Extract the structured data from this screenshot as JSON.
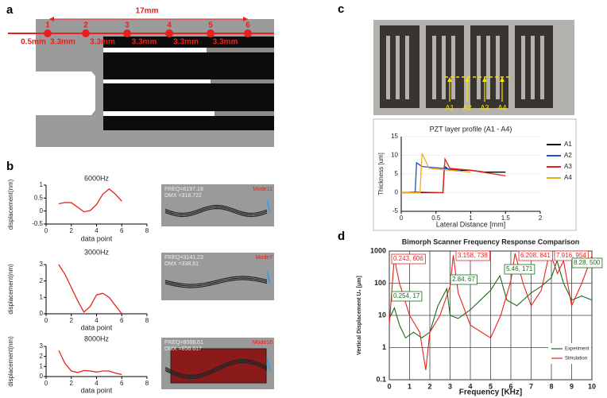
{
  "panel_labels": [
    "a",
    "b",
    "c",
    "d"
  ],
  "diagram": {
    "length": "17mm",
    "points": [
      "1",
      "2",
      "3",
      "4",
      "5",
      "6"
    ],
    "offset": "0.5mm",
    "spacings": [
      "3.3mm",
      "3.3mm",
      "3.3mm",
      "3.3mm",
      "3.3mm"
    ]
  },
  "simulations": [
    {
      "freq": "FREQ=6197.18",
      "dmx": "DMX =318.722",
      "mode": "Mode11"
    },
    {
      "freq": "FREQ=3141.23",
      "dmx": "DMX =338.61",
      "mode": "Mode7"
    },
    {
      "freq": "FREQ=8088.61",
      "dmx": "DMX =858.617",
      "mode": "Mode16"
    }
  ],
  "photo": {
    "markers": [
      "A1",
      "A2",
      "A3",
      "A4"
    ]
  },
  "chart_data": [
    {
      "type": "line",
      "title": "6000Hz",
      "x_label": "data point",
      "y_label": "displacement(nm)",
      "xlim": [
        0,
        8
      ],
      "xticks": [
        0,
        2,
        4,
        6,
        8
      ],
      "ylim": [
        -0.5,
        1
      ],
      "yticks": [
        -0.5,
        0,
        0.5,
        1
      ],
      "series": [
        {
          "color": "#e8211d",
          "x": [
            1,
            1.5,
            2,
            2.5,
            3,
            3.5,
            4,
            4.5,
            5,
            5.5,
            6
          ],
          "values": [
            0.28,
            0.33,
            0.32,
            0.15,
            -0.03,
            0.02,
            0.25,
            0.65,
            0.85,
            0.65,
            0.38
          ]
        }
      ]
    },
    {
      "type": "line",
      "title": "3000Hz",
      "x_label": "data point",
      "y_label": "displacement(nm)",
      "xlim": [
        0,
        8
      ],
      "xticks": [
        0,
        2,
        4,
        6,
        8
      ],
      "ylim": [
        0,
        3
      ],
      "yticks": [
        0,
        1,
        2,
        3
      ],
      "series": [
        {
          "color": "#e8211d",
          "x": [
            1,
            1.5,
            2,
            2.5,
            3,
            3.5,
            4,
            4.5,
            5,
            5.5,
            6
          ],
          "values": [
            3.0,
            2.4,
            1.6,
            0.8,
            0.1,
            0.45,
            1.15,
            1.25,
            1.0,
            0.5,
            0.0
          ]
        }
      ]
    },
    {
      "type": "line",
      "title": "8000Hz",
      "x_label": "data point",
      "y_label": "displacement(nm)",
      "xlim": [
        0,
        8
      ],
      "xticks": [
        0,
        2,
        4,
        6,
        8
      ],
      "ylim": [
        0,
        3
      ],
      "yticks": [
        0,
        1,
        2,
        3
      ],
      "series": [
        {
          "color": "#e8211d",
          "x": [
            1,
            1.5,
            2,
            2.5,
            3,
            3.5,
            4,
            4.5,
            5,
            5.5,
            6
          ],
          "values": [
            2.6,
            1.3,
            0.55,
            0.4,
            0.6,
            0.55,
            0.45,
            0.55,
            0.55,
            0.35,
            0.2
          ]
        }
      ]
    },
    {
      "type": "line",
      "title": "PZT layer profile (A1 - A4)",
      "x_label": "Lateral Distance [mm]",
      "y_label": "Thickness [um]",
      "xlim": [
        0,
        2
      ],
      "xticks": [
        0,
        0.5,
        1,
        1.5,
        2
      ],
      "ylim": [
        -5,
        15
      ],
      "yticks": [
        -5,
        0,
        5,
        10,
        15
      ],
      "legend": "right",
      "series": [
        {
          "name": "A1",
          "color": "#000000",
          "x": [
            0.0,
            0.6,
            0.62,
            0.7,
            1.0,
            1.2,
            1.5
          ],
          "values": [
            0,
            0,
            7,
            6,
            6,
            5.5,
            5.5
          ]
        },
        {
          "name": "A2",
          "color": "#1f4fc8",
          "x": [
            0.0,
            0.2,
            0.22,
            0.3,
            0.6,
            0.85
          ],
          "values": [
            0,
            0,
            8,
            7,
            6.5,
            6
          ]
        },
        {
          "name": "A3",
          "color": "#e8211d",
          "x": [
            0.05,
            0.2,
            0.6,
            0.63,
            0.7,
            1.0,
            1.5
          ],
          "values": [
            0,
            0.2,
            0,
            9,
            6.5,
            6,
            4.5
          ]
        },
        {
          "name": "A4",
          "color": "#f5a623",
          "x": [
            0.0,
            0.27,
            0.3,
            0.4,
            0.7,
            1.0
          ],
          "values": [
            0,
            0,
            10.5,
            6.5,
            6,
            5.5
          ]
        }
      ]
    },
    {
      "type": "line",
      "title": "Bimorph Scanner Frequency Response Comparison",
      "x_label": "Frequency [KHz]",
      "y_label": "Vertical Displacement U₃ [μm]",
      "xlim": [
        0,
        10
      ],
      "xticks": [
        0,
        1,
        2,
        3,
        4,
        5,
        6,
        7,
        8,
        9,
        10
      ],
      "ylim": [
        0.1,
        1000
      ],
      "yticks": [
        0.1,
        1,
        10,
        100,
        1000
      ],
      "log_scale": true,
      "grid": true,
      "legend": "lower-right",
      "series": [
        {
          "name": "Experiment",
          "color": "#1a6b1a",
          "x": [
            0,
            0.25,
            0.5,
            0.8,
            1.2,
            1.6,
            2.0,
            2.4,
            2.84,
            3.0,
            3.4,
            4.0,
            4.5,
            5.0,
            5.46,
            5.8,
            6.3,
            7.0,
            7.5,
            8.0,
            8.28,
            8.6,
            9.0,
            9.5,
            10
          ],
          "values": [
            8,
            17,
            5,
            2,
            3,
            2,
            3,
            20,
            67,
            10,
            8,
            15,
            30,
            60,
            171,
            30,
            20,
            50,
            80,
            150,
            500,
            100,
            30,
            40,
            30
          ]
        },
        {
          "name": "Simulation",
          "color": "#e8211d",
          "x": [
            0,
            0.243,
            0.5,
            1.0,
            1.5,
            1.8,
            2.0,
            2.5,
            3.0,
            3.158,
            3.4,
            4.0,
            5.0,
            5.5,
            6.0,
            6.208,
            6.6,
            7.0,
            7.5,
            7.916,
            8.3,
            8.6,
            9.0,
            9.5,
            10
          ],
          "values": [
            5,
            606,
            100,
            10,
            3,
            0.2,
            3,
            10,
            80,
            738,
            50,
            5,
            2,
            10,
            120,
            841,
            100,
            20,
            60,
            954,
            200,
            500,
            20,
            100,
            700
          ]
        }
      ],
      "annotations": [
        {
          "text": "0.243, 606",
          "color": "#e8211d"
        },
        {
          "text": "3.158, 738",
          "color": "#e8211d"
        },
        {
          "text": "6.208, 841",
          "color": "#e8211d"
        },
        {
          "text": "7.916, 954",
          "color": "#e8211d"
        },
        {
          "text": "0.254, 17",
          "color": "#1a6b1a"
        },
        {
          "text": "2.84, 67",
          "color": "#1a6b1a"
        },
        {
          "text": "5.46, 171",
          "color": "#1a6b1a"
        },
        {
          "text": "8.28, 500",
          "color": "#1a6b1a"
        }
      ]
    }
  ]
}
